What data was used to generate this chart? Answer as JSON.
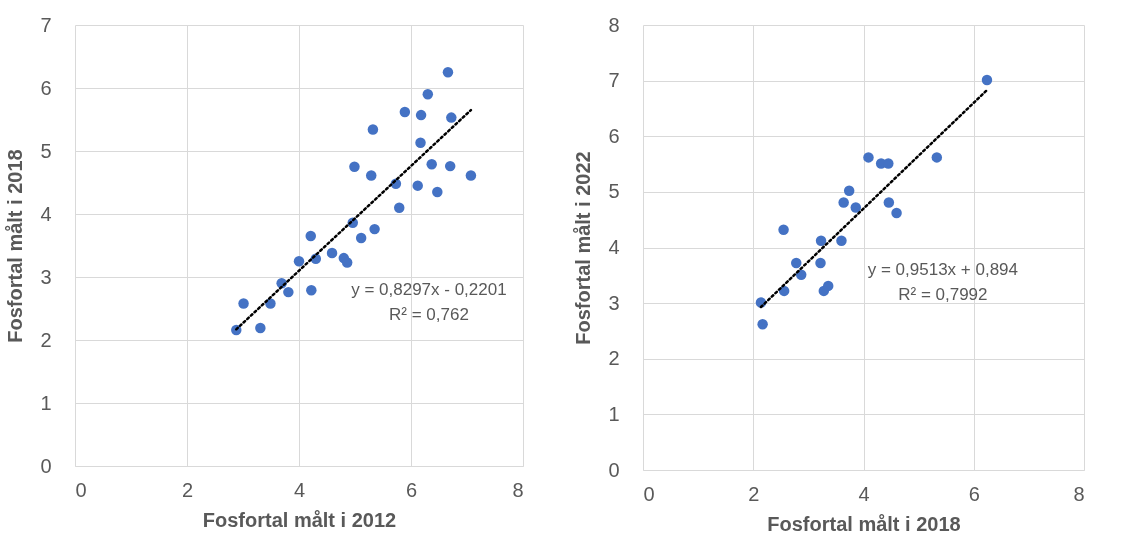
{
  "chart_data": [
    {
      "type": "scatter",
      "xlabel": "Fosfortal målt i 2012",
      "ylabel": "Fosfortal målt i 2018",
      "xlim": [
        0,
        8
      ],
      "ylim": [
        0,
        7
      ],
      "xticks": [
        0,
        2,
        4,
        6,
        8
      ],
      "yticks": [
        0,
        1,
        2,
        3,
        4,
        5,
        6,
        7
      ],
      "grid": true,
      "marker": "circle",
      "series": [
        {
          "color": "#4472c4",
          "x": [
            6.66,
            6.3,
            5.89,
            6.18,
            6.72,
            5.32,
            6.17,
            4.99,
            5.29,
            6.37,
            6.7,
            7.07,
            5.73,
            6.12,
            6.47,
            5.79,
            4.96,
            5.35,
            5.11,
            4.21,
            4.0,
            4.3,
            4.59,
            4.8,
            4.86,
            3.69,
            3.81,
            4.22,
            3.01,
            3.49,
            2.88,
            3.31
          ],
          "values": [
            6.25,
            5.9,
            5.62,
            5.57,
            5.53,
            5.34,
            5.13,
            4.75,
            4.61,
            4.79,
            4.76,
            4.61,
            4.48,
            4.45,
            4.35,
            4.1,
            3.86,
            3.76,
            3.62,
            3.65,
            3.25,
            3.29,
            3.38,
            3.3,
            3.23,
            2.9,
            2.76,
            2.79,
            2.58,
            2.58,
            2.16,
            2.19
          ]
        },
        {
          "type": "line",
          "color": "#000000",
          "line_style": "dotted",
          "marker": "none",
          "x": [
            2.88,
            7.07
          ],
          "values": [
            2.17,
            5.65
          ]
        }
      ],
      "annotations": [
        "y = 0,8297x - 0,2201",
        "R² = 0,762"
      ]
    },
    {
      "type": "scatter",
      "xlabel": "Fosfortal målt i 2018",
      "ylabel": "Fosfortal målt i 2022",
      "xlim": [
        0,
        8
      ],
      "ylim": [
        0,
        8
      ],
      "xticks": [
        0,
        2,
        4,
        6,
        8
      ],
      "yticks": [
        0,
        1,
        2,
        3,
        4,
        5,
        6,
        7,
        8
      ],
      "grid": true,
      "marker": "circle",
      "series": [
        {
          "color": "#4472c4",
          "x": [
            6.24,
            4.09,
            4.32,
            4.45,
            5.33,
            3.74,
            3.64,
            3.86,
            4.46,
            4.6,
            2.55,
            3.23,
            3.6,
            2.78,
            3.22,
            2.87,
            2.56,
            3.28,
            3.36,
            2.14,
            2.17
          ],
          "values": [
            7.01,
            5.62,
            5.51,
            5.51,
            5.62,
            5.02,
            4.81,
            4.72,
            4.81,
            4.62,
            4.32,
            4.12,
            4.12,
            3.72,
            3.72,
            3.51,
            3.22,
            3.22,
            3.31,
            3.01,
            2.62
          ]
        },
        {
          "type": "line",
          "color": "#000000",
          "line_style": "dotted",
          "marker": "none",
          "x": [
            2.14,
            6.24
          ],
          "values": [
            2.93,
            6.83
          ]
        }
      ],
      "annotations": [
        "y = 0,9513x + 0,894",
        "R² = 0,7992"
      ]
    }
  ]
}
